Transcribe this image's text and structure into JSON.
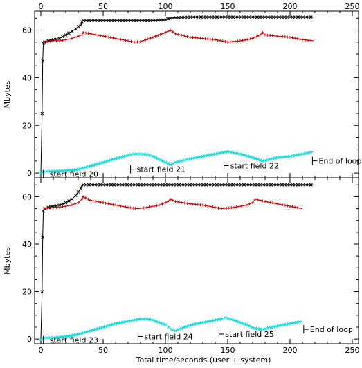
{
  "chart_data": [
    {
      "type": "line",
      "title": "",
      "xlabel": "",
      "ylabel": "Mbytes",
      "xlim": [
        -5,
        255
      ],
      "ylim": [
        -2,
        68
      ],
      "xticks": [
        0,
        50,
        100,
        150,
        200,
        250
      ],
      "yticks": [
        0,
        20,
        40,
        60
      ],
      "xtick_labels": [
        "0",
        "50",
        "100",
        "150",
        "200",
        "250"
      ],
      "ytick_labels": [
        "0",
        "20",
        "40",
        "60"
      ],
      "series": [
        {
          "color": "#000000",
          "marker": "x",
          "x": [
            0,
            1,
            1.5,
            2,
            3,
            6,
            10,
            15,
            20,
            25,
            28,
            30,
            32,
            33,
            34,
            50,
            70,
            90,
            100,
            102,
            104,
            106,
            120,
            150,
            180,
            200,
            219
          ],
          "y": [
            0,
            25,
            47,
            54.5,
            55,
            55.5,
            56,
            56.5,
            58,
            59.5,
            60.5,
            61.5,
            62,
            63.5,
            64,
            64,
            64,
            64,
            64.3,
            64.8,
            65,
            65.2,
            65.5,
            65.5,
            65.5,
            65.5,
            65.5
          ]
        },
        {
          "color": "#cc0000",
          "marker": "+",
          "x": [
            3,
            5,
            10,
            15,
            20,
            25,
            30,
            33,
            34,
            40,
            50,
            60,
            70,
            75,
            80,
            90,
            100,
            104,
            108,
            120,
            130,
            140,
            150,
            160,
            170,
            176,
            178,
            180,
            190,
            200,
            210,
            219
          ],
          "y": [
            55,
            55.2,
            55.6,
            55.5,
            56,
            56.5,
            57.5,
            58,
            59,
            58.5,
            57.5,
            56.5,
            55.5,
            55,
            55.2,
            57,
            59,
            60,
            58.5,
            57,
            56.5,
            56,
            55,
            55.5,
            56.5,
            58,
            59,
            58,
            57.5,
            57,
            56,
            55.5
          ]
        },
        {
          "color": "#00dddd",
          "marker": "x",
          "x": [
            0,
            2,
            5,
            10,
            20,
            30,
            40,
            50,
            60,
            70,
            75,
            80,
            85,
            90,
            100,
            104,
            108,
            120,
            130,
            140,
            150,
            155,
            160,
            170,
            178,
            182,
            190,
            200,
            210,
            219
          ],
          "y": [
            0,
            0.5,
            0.7,
            0.8,
            1,
            1.5,
            3,
            4.5,
            6,
            7.5,
            8,
            8,
            7.8,
            7,
            4.5,
            3.5,
            4.5,
            6,
            7,
            8,
            9,
            8.5,
            8,
            6.5,
            5,
            5.5,
            6.5,
            7,
            8,
            9
          ]
        }
      ],
      "annotations": [
        {
          "text": "start field 20",
          "x": 2,
          "y": -1
        },
        {
          "text": "start field 21",
          "x": 72,
          "y": 1
        },
        {
          "text": "start field 22",
          "x": 147,
          "y": 2.5
        },
        {
          "text": "End of loop",
          "x": 218,
          "y": 4.5
        }
      ]
    },
    {
      "type": "line",
      "title": "",
      "xlabel": "Total time/seconds (user + system)",
      "ylabel": "Mbytes",
      "xlim": [
        -5,
        255
      ],
      "ylim": [
        -2,
        68
      ],
      "xticks": [
        0,
        50,
        100,
        150,
        200,
        250
      ],
      "yticks": [
        0,
        20,
        40,
        60
      ],
      "xtick_labels": [
        "0",
        "50",
        "100",
        "150",
        "200",
        "250"
      ],
      "ytick_labels": [
        "0",
        "20",
        "40",
        "60"
      ],
      "series": [
        {
          "color": "#000000",
          "marker": "x",
          "x": [
            0,
            1,
            1.5,
            2,
            3,
            6,
            10,
            15,
            20,
            25,
            28,
            30,
            32,
            33,
            34,
            50,
            80,
            100,
            150,
            200,
            219
          ],
          "y": [
            0,
            20,
            43,
            54,
            55,
            55.5,
            56,
            56.5,
            57.5,
            59,
            60.5,
            62,
            63.5,
            64.5,
            65,
            65,
            65,
            65,
            65,
            65,
            65
          ]
        },
        {
          "color": "#cc0000",
          "marker": "+",
          "x": [
            3,
            5,
            10,
            15,
            20,
            25,
            30,
            33,
            34,
            40,
            50,
            60,
            70,
            78,
            85,
            95,
            100,
            102,
            104,
            108,
            120,
            130,
            140,
            145,
            155,
            165,
            170,
            172,
            180,
            190,
            200,
            210
          ],
          "y": [
            55,
            55.2,
            55.6,
            55.5,
            56,
            56.5,
            57.5,
            59,
            60,
            58.5,
            57.5,
            56.5,
            55.5,
            55,
            55.5,
            56.5,
            57.5,
            58,
            59,
            58,
            57,
            56.5,
            55.5,
            55,
            55.5,
            56.5,
            57.5,
            59,
            58,
            57,
            56,
            55
          ]
        },
        {
          "color": "#00dddd",
          "marker": "x",
          "x": [
            0,
            2,
            5,
            10,
            20,
            30,
            40,
            50,
            60,
            70,
            80,
            85,
            90,
            100,
            105,
            108,
            115,
            125,
            135,
            145,
            148,
            155,
            165,
            172,
            178,
            185,
            195,
            205,
            210
          ],
          "y": [
            0,
            0.3,
            0.5,
            0.6,
            1,
            2,
            3.5,
            5,
            6.5,
            7.5,
            8.5,
            8.5,
            8,
            6,
            4,
            3.5,
            5,
            6.5,
            7.5,
            8.5,
            9,
            8,
            6,
            4.5,
            4,
            5,
            6,
            7,
            7.5
          ]
        }
      ],
      "annotations": [
        {
          "text": "start field 23",
          "x": 2,
          "y": -1
        },
        {
          "text": "start field 24",
          "x": 78,
          "y": 0.5
        },
        {
          "text": "start field 25",
          "x": 143,
          "y": 1.5
        },
        {
          "text": "End of loop",
          "x": 211,
          "y": 3.5
        }
      ]
    }
  ]
}
